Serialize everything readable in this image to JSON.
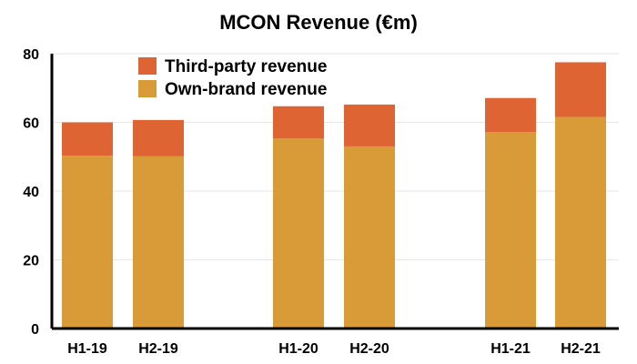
{
  "chart_data": {
    "type": "bar",
    "stacked": true,
    "title": "MCON Revenue (€m)",
    "categories": [
      "H1-19",
      "H2-19",
      "H1-20",
      "H2-20",
      "H1-21",
      "H2-21"
    ],
    "series": [
      {
        "name": "Own-brand revenue",
        "values": [
          50.3,
          50.2,
          55.3,
          53.0,
          57.2,
          61.6
        ],
        "color": "#D99A38"
      },
      {
        "name": "Third-party revenue",
        "values": [
          9.7,
          10.5,
          9.4,
          12.2,
          9.9,
          15.9
        ],
        "color": "#DE6433"
      }
    ],
    "ylim": [
      0,
      80
    ],
    "yticks": [
      0,
      20,
      40,
      60,
      80
    ],
    "grid": true,
    "legend": "top-left"
  }
}
